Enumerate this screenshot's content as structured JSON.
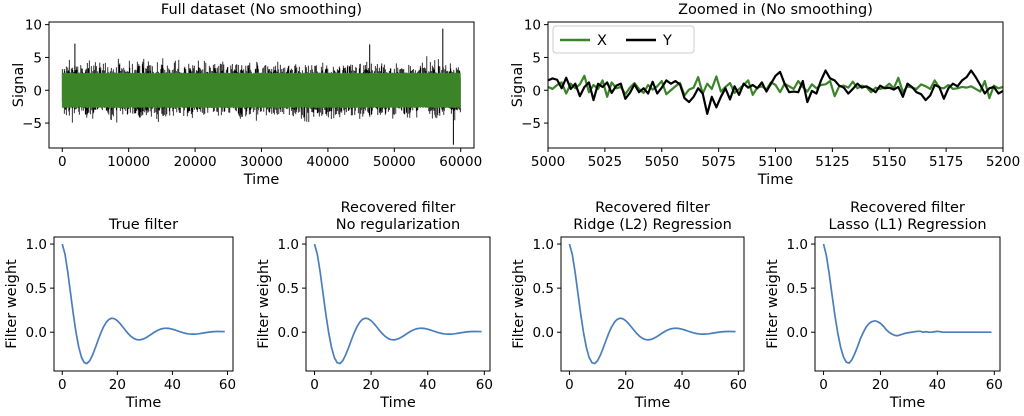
{
  "colors": {
    "x_series": "#3b8427",
    "y_series": "#000000",
    "filter": "#4a7ebb"
  },
  "chart_data": [
    {
      "type": "line",
      "title": "Full dataset (No smoothing)",
      "xlabel": "Time",
      "ylabel": "Signal",
      "xlim": [
        -2000,
        62000
      ],
      "ylim": [
        -8.8,
        10.4
      ],
      "xticks": [
        0,
        10000,
        20000,
        30000,
        40000,
        50000,
        60000
      ],
      "yticks": [
        -5,
        0,
        5,
        10
      ],
      "series": [
        {
          "name": "X",
          "x_range": [
            0,
            60000
          ],
          "band": [
            -2.7,
            2.7
          ]
        },
        {
          "name": "Y",
          "x_range": [
            0,
            60000
          ],
          "band": [
            -5.2,
            5.6
          ],
          "extremes": [
            9.4,
            -8.3
          ]
        }
      ]
    },
    {
      "type": "line",
      "title": "Zoomed in (No smoothing)",
      "xlabel": "Time",
      "ylabel": "Signal",
      "xlim": [
        5000,
        5200
      ],
      "ylim": [
        -8.8,
        10.4
      ],
      "xticks": [
        5000,
        5025,
        5050,
        5075,
        5100,
        5125,
        5150,
        5175,
        5200
      ],
      "yticks": [
        -5,
        0,
        5,
        10
      ],
      "legend": "top-left",
      "series": [
        {
          "name": "X",
          "x_start": 5000,
          "x_step": 2,
          "values": [
            0.5,
            0.2,
            0.8,
            1.2,
            -0.5,
            1.0,
            0.3,
            0.9,
            2.2,
            -0.3,
            0.8,
            0.2,
            1.5,
            -1.0,
            1.2,
            0.3,
            0.5,
            -0.6,
            0.4,
            1.1,
            0.2,
            -0.4,
            0.8,
            0.1,
            0.6,
            1.4,
            -0.6,
            0.0,
            0.6,
            1.1,
            -0.8,
            0.1,
            0.4,
            2.0,
            -0.5,
            1.0,
            0.2,
            2.1,
            -0.2,
            0.5,
            1.1,
            -0.4,
            0.2,
            0.8,
            1.5,
            -0.7,
            0.4,
            0.6,
            0.1,
            1.2,
            0.8,
            -0.3,
            1.0,
            0.6,
            0.2,
            1.4,
            0.5,
            -0.2,
            0.9,
            0.3,
            0.8,
            0.9,
            1.4,
            -0.9,
            0.6,
            0.7,
            0.4,
            1.3,
            0.3,
            0.7,
            0.5,
            -0.3,
            0.4,
            0.2,
            0.4,
            1.0,
            0.3,
            1.9,
            -0.3,
            0.6,
            0.4,
            0.2,
            0.9,
            0.6,
            0.2,
            1.5,
            0.4,
            0.3,
            0.8,
            0.2,
            0.3,
            0.5,
            0.4,
            0.6,
            0.2,
            -0.2,
            1.4,
            -1.2,
            0.7,
            0.3,
            0.5
          ]
        },
        {
          "name": "Y",
          "x_start": 5000,
          "x_step": 2,
          "values": [
            1.5,
            1.8,
            1.6,
            0.3,
            1.9,
            0.2,
            1.0,
            -0.9,
            0.5,
            1.2,
            -1.5,
            1.0,
            0.5,
            1.2,
            -0.4,
            0.7,
            1.0,
            -1.3,
            -0.4,
            0.9,
            -0.3,
            0.3,
            -0.5,
            1.3,
            -0.5,
            0.4,
            1.5,
            1.0,
            1.4,
            0.9,
            -1.2,
            -1.8,
            -1.0,
            0.3,
            -0.5,
            -3.6,
            -1.0,
            -2.6,
            -1.0,
            0.3,
            -1.4,
            0.6,
            -0.7,
            1.0,
            0.4,
            0.8,
            0.3,
            1.2,
            -0.2,
            1.0,
            2.2,
            2.8,
            1.0,
            -0.3,
            -0.2,
            -0.3,
            1.4,
            -1.8,
            -0.1,
            -0.5,
            1.5,
            3.0,
            1.8,
            1.5,
            0.7,
            0.4,
            -0.5,
            0.2,
            1.0,
            0.4,
            0.6,
            0.2,
            -0.3,
            0.7,
            0.3,
            0.4,
            0.1,
            0.5,
            -1.0,
            1.0,
            0.5,
            -0.3,
            -0.6,
            -1.5,
            -0.8,
            0.8,
            0.5,
            -1.3,
            0.3,
            1.0,
            0.6,
            1.5,
            2.0,
            3.0,
            2.0,
            0.8,
            -0.5,
            0.3,
            0.5,
            -0.5,
            -0.1
          ]
        }
      ]
    },
    {
      "type": "line",
      "title": "True filter",
      "xlabel": "Time",
      "ylabel": "Filter weight",
      "xlim": [
        -3,
        62
      ],
      "ylim": [
        -0.44,
        1.08
      ],
      "xticks": [
        0,
        20,
        40,
        60
      ],
      "yticks": [
        0.0,
        0.5,
        1.0
      ],
      "series": [
        {
          "x_start": 0,
          "x_step": 1,
          "values": [
            1.0,
            0.8845,
            0.6825,
            0.4445,
            0.2068,
            -0.0037,
            -0.1713,
            -0.286,
            -0.3459,
            -0.355,
            -0.3224,
            -0.259,
            -0.1778,
            -0.0911,
            -0.0085,
            0.0617,
            0.1142,
            0.1467,
            0.1589,
            0.1525,
            0.1307,
            0.0979,
            0.0591,
            0.0192,
            -0.0177,
            -0.0484,
            -0.0707,
            -0.0835,
            -0.0868,
            -0.0813,
            -0.0688,
            -0.051,
            -0.0304,
            -0.0092,
            0.0105,
            0.0266,
            0.038,
            0.0442,
            0.0453,
            0.0417,
            0.0344,
            0.0247,
            0.0137,
            0.0028,
            -0.0069,
            -0.0146,
            -0.0197,
            -0.0221,
            -0.0218,
            -0.0193,
            -0.0151,
            -0.0101,
            -0.0049,
            -0.0002,
            0.0037,
            0.0064,
            0.0079,
            0.0082,
            0.0076,
            0.0063
          ]
        }
      ]
    },
    {
      "type": "line",
      "title": "Recovered filter\nNo regularization",
      "xlabel": "Time",
      "ylabel": "Filter weight",
      "xlim": [
        -3,
        62
      ],
      "ylim": [
        -0.44,
        1.08
      ],
      "xticks": [
        0,
        20,
        40,
        60
      ],
      "yticks": [
        0.0,
        0.5,
        1.0
      ],
      "series": [
        {
          "x_start": 0,
          "x_step": 1,
          "values": [
            1.0,
            0.8845,
            0.6825,
            0.4445,
            0.2068,
            -0.0037,
            -0.1713,
            -0.286,
            -0.3459,
            -0.355,
            -0.3224,
            -0.259,
            -0.1778,
            -0.0911,
            -0.0085,
            0.0617,
            0.1142,
            0.1467,
            0.1589,
            0.1525,
            0.1307,
            0.0979,
            0.0591,
            0.0192,
            -0.0177,
            -0.0484,
            -0.0707,
            -0.0835,
            -0.0868,
            -0.0813,
            -0.0688,
            -0.051,
            -0.0304,
            -0.0092,
            0.0105,
            0.0266,
            0.038,
            0.0442,
            0.0453,
            0.0417,
            0.0344,
            0.0247,
            0.0137,
            0.0028,
            -0.0069,
            -0.0146,
            -0.0197,
            -0.0221,
            -0.0218,
            -0.0193,
            -0.0151,
            -0.0101,
            -0.0049,
            -0.0002,
            0.0037,
            0.0064,
            0.0079,
            0.0082,
            0.0076,
            0.0063
          ]
        }
      ]
    },
    {
      "type": "line",
      "title": "Recovered filter\nRidge (L2) Regression",
      "xlabel": "Time",
      "ylabel": "Filter weight",
      "xlim": [
        -3,
        62
      ],
      "ylim": [
        -0.44,
        1.08
      ],
      "xticks": [
        0,
        20,
        40,
        60
      ],
      "yticks": [
        0.0,
        0.5,
        1.0
      ],
      "series": [
        {
          "x_start": 0,
          "x_step": 1,
          "values": [
            1.0,
            0.8845,
            0.6825,
            0.4445,
            0.2068,
            -0.0037,
            -0.1713,
            -0.286,
            -0.3459,
            -0.355,
            -0.3224,
            -0.259,
            -0.1778,
            -0.0911,
            -0.0085,
            0.0617,
            0.1142,
            0.1467,
            0.1589,
            0.1525,
            0.1307,
            0.0979,
            0.0591,
            0.0192,
            -0.0177,
            -0.0484,
            -0.0707,
            -0.0835,
            -0.0868,
            -0.0813,
            -0.0688,
            -0.051,
            -0.0304,
            -0.0092,
            0.0105,
            0.0266,
            0.038,
            0.0442,
            0.0453,
            0.0417,
            0.0344,
            0.0247,
            0.0137,
            0.0028,
            -0.0069,
            -0.0146,
            -0.0197,
            -0.0221,
            -0.0218,
            -0.0193,
            -0.0151,
            -0.0101,
            -0.0049,
            -0.0002,
            0.0037,
            0.0064,
            0.0079,
            0.0082,
            0.0076,
            0.0063
          ]
        }
      ]
    },
    {
      "type": "line",
      "title": "Recovered filter\nLasso (L1) Regression",
      "xlabel": "Time",
      "ylabel": "Filter weight",
      "xlim": [
        -3,
        62
      ],
      "ylim": [
        -0.44,
        1.08
      ],
      "xticks": [
        0,
        20,
        40,
        60
      ],
      "yticks": [
        0.0,
        0.5,
        1.0
      ],
      "series": [
        {
          "x_start": 0,
          "x_step": 1,
          "values": [
            1.0,
            0.87,
            0.66,
            0.42,
            0.19,
            -0.01,
            -0.17,
            -0.28,
            -0.34,
            -0.35,
            -0.31,
            -0.24,
            -0.16,
            -0.07,
            0.0,
            0.06,
            0.1,
            0.12,
            0.13,
            0.12,
            0.1,
            0.07,
            0.03,
            0.0,
            -0.02,
            -0.035,
            -0.04,
            -0.03,
            -0.02,
            -0.01,
            -0.005,
            0.0,
            0.005,
            0.01,
            0.01,
            0.0,
            0.005,
            0.0,
            0.0,
            0.005,
            0.01,
            0.005,
            0.0,
            0.0,
            0.0,
            0.0,
            0.0,
            0.0,
            0.0,
            0.0,
            0.0,
            0.0,
            0.0,
            0.0,
            0.0,
            0.0,
            0.0,
            0.0,
            0.0,
            0.0
          ]
        }
      ]
    }
  ]
}
